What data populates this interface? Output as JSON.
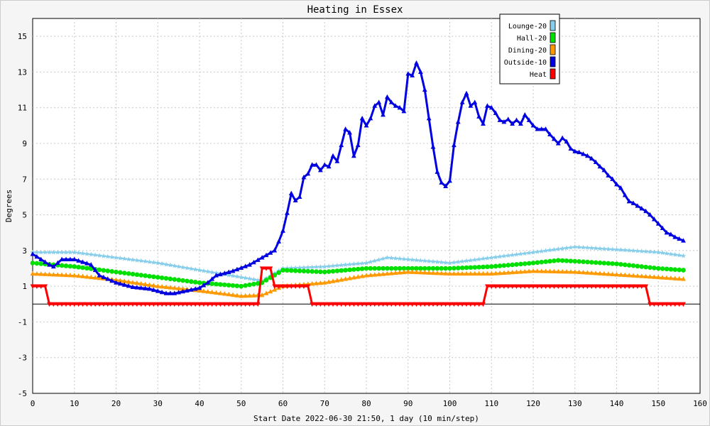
{
  "chart_data": {
    "type": "line",
    "title": "Heating in Essex",
    "xlabel": "Start Date 2022-06-30 21:50, 1 day (10 min/step)",
    "ylabel": "Degrees",
    "xlim": [
      0,
      160
    ],
    "ylim": [
      -5,
      16
    ],
    "xticks": [
      0,
      10,
      20,
      30,
      40,
      50,
      60,
      70,
      80,
      90,
      100,
      110,
      120,
      130,
      140,
      150,
      160
    ],
    "yticks": [
      -5,
      -3,
      -1,
      1,
      3,
      5,
      7,
      9,
      11,
      13,
      15
    ],
    "grid": true,
    "legend_position": "top-right",
    "series": [
      {
        "name": "Lounge-20",
        "color": "#87ceeb",
        "marker": "star",
        "points": [
          [
            0,
            2.9
          ],
          [
            10,
            2.9
          ],
          [
            20,
            2.6
          ],
          [
            30,
            2.3
          ],
          [
            40,
            1.9
          ],
          [
            50,
            1.5
          ],
          [
            55,
            1.3
          ],
          [
            60,
            2.0
          ],
          [
            65,
            2.05
          ],
          [
            70,
            2.1
          ],
          [
            80,
            2.3
          ],
          [
            85,
            2.6
          ],
          [
            90,
            2.5
          ],
          [
            95,
            2.4
          ],
          [
            100,
            2.3
          ],
          [
            110,
            2.6
          ],
          [
            120,
            2.9
          ],
          [
            130,
            3.2
          ],
          [
            140,
            3.05
          ],
          [
            150,
            2.9
          ],
          [
            156,
            2.7
          ]
        ]
      },
      {
        "name": "Hall-20",
        "color": "#00e000",
        "marker": "circle",
        "points": [
          [
            0,
            2.3
          ],
          [
            10,
            2.1
          ],
          [
            20,
            1.8
          ],
          [
            30,
            1.5
          ],
          [
            40,
            1.2
          ],
          [
            50,
            1.0
          ],
          [
            55,
            1.2
          ],
          [
            60,
            1.9
          ],
          [
            70,
            1.8
          ],
          [
            80,
            2.0
          ],
          [
            90,
            2.0
          ],
          [
            100,
            2.0
          ],
          [
            110,
            2.1
          ],
          [
            120,
            2.3
          ],
          [
            126,
            2.45
          ],
          [
            130,
            2.4
          ],
          [
            140,
            2.25
          ],
          [
            150,
            2.0
          ],
          [
            156,
            1.9
          ]
        ]
      },
      {
        "name": "Dining-20",
        "color": "#ff9900",
        "marker": "triangle-up",
        "points": [
          [
            0,
            1.7
          ],
          [
            10,
            1.6
          ],
          [
            20,
            1.35
          ],
          [
            30,
            1.0
          ],
          [
            40,
            0.75
          ],
          [
            50,
            0.45
          ],
          [
            55,
            0.5
          ],
          [
            58,
            0.8
          ],
          [
            60,
            1.0
          ],
          [
            70,
            1.2
          ],
          [
            80,
            1.6
          ],
          [
            90,
            1.8
          ],
          [
            100,
            1.7
          ],
          [
            110,
            1.7
          ],
          [
            120,
            1.85
          ],
          [
            130,
            1.8
          ],
          [
            140,
            1.65
          ],
          [
            150,
            1.5
          ],
          [
            156,
            1.4
          ]
        ]
      },
      {
        "name": "Outside-10",
        "color": "#0000e0",
        "marker": "triangle-up",
        "points": [
          [
            0,
            2.8
          ],
          [
            2,
            2.5
          ],
          [
            4,
            2.2
          ],
          [
            5,
            2.1
          ],
          [
            7,
            2.5
          ],
          [
            10,
            2.5
          ],
          [
            14,
            2.2
          ],
          [
            16,
            1.6
          ],
          [
            20,
            1.2
          ],
          [
            24,
            0.95
          ],
          [
            28,
            0.85
          ],
          [
            32,
            0.6
          ],
          [
            34,
            0.6
          ],
          [
            36,
            0.7
          ],
          [
            40,
            0.9
          ],
          [
            42,
            1.2
          ],
          [
            44,
            1.6
          ],
          [
            48,
            1.85
          ],
          [
            52,
            2.2
          ],
          [
            55,
            2.6
          ],
          [
            58,
            3.0
          ],
          [
            59,
            3.5
          ],
          [
            60,
            4.1
          ],
          [
            61,
            5.1
          ],
          [
            62,
            6.2
          ],
          [
            63,
            5.8
          ],
          [
            64,
            6.0
          ],
          [
            65,
            7.1
          ],
          [
            66,
            7.3
          ],
          [
            67,
            7.8
          ],
          [
            68,
            7.8
          ],
          [
            69,
            7.5
          ],
          [
            70,
            7.8
          ],
          [
            71,
            7.7
          ],
          [
            72,
            8.3
          ],
          [
            73,
            8.0
          ],
          [
            74,
            8.9
          ],
          [
            75,
            9.8
          ],
          [
            76,
            9.6
          ],
          [
            77,
            8.3
          ],
          [
            78,
            8.9
          ],
          [
            79,
            10.4
          ],
          [
            80,
            10.0
          ],
          [
            81,
            10.4
          ],
          [
            82,
            11.1
          ],
          [
            83,
            11.3
          ],
          [
            84,
            10.6
          ],
          [
            85,
            11.6
          ],
          [
            86,
            11.3
          ],
          [
            87,
            11.1
          ],
          [
            88,
            11.0
          ],
          [
            89,
            10.8
          ],
          [
            90,
            12.9
          ],
          [
            91,
            12.8
          ],
          [
            92,
            13.5
          ],
          [
            93,
            13.0
          ],
          [
            94,
            12.0
          ],
          [
            95,
            10.4
          ],
          [
            96,
            8.8
          ],
          [
            97,
            7.4
          ],
          [
            98,
            6.8
          ],
          [
            99,
            6.6
          ],
          [
            100,
            6.9
          ],
          [
            101,
            8.9
          ],
          [
            102,
            10.2
          ],
          [
            103,
            11.3
          ],
          [
            104,
            11.8
          ],
          [
            105,
            11.1
          ],
          [
            106,
            11.3
          ],
          [
            107,
            10.5
          ],
          [
            108,
            10.1
          ],
          [
            109,
            11.1
          ],
          [
            110,
            11.0
          ],
          [
            111,
            10.7
          ],
          [
            112,
            10.3
          ],
          [
            113,
            10.2
          ],
          [
            114,
            10.35
          ],
          [
            115,
            10.1
          ],
          [
            116,
            10.3
          ],
          [
            117,
            10.1
          ],
          [
            118,
            10.6
          ],
          [
            119,
            10.3
          ],
          [
            120,
            10.0
          ],
          [
            121,
            9.8
          ],
          [
            122,
            9.8
          ],
          [
            123,
            9.8
          ],
          [
            124,
            9.5
          ],
          [
            125,
            9.25
          ],
          [
            126,
            9.0
          ],
          [
            127,
            9.3
          ],
          [
            128,
            9.1
          ],
          [
            129,
            8.7
          ],
          [
            130,
            8.55
          ],
          [
            131,
            8.5
          ],
          [
            132,
            8.4
          ],
          [
            133,
            8.3
          ],
          [
            134,
            8.15
          ],
          [
            135,
            7.95
          ],
          [
            136,
            7.7
          ],
          [
            137,
            7.5
          ],
          [
            138,
            7.2
          ],
          [
            139,
            7.0
          ],
          [
            140,
            6.7
          ],
          [
            141,
            6.5
          ],
          [
            142,
            6.1
          ],
          [
            143,
            5.75
          ],
          [
            144,
            5.65
          ],
          [
            145,
            5.5
          ],
          [
            146,
            5.35
          ],
          [
            147,
            5.2
          ],
          [
            148,
            5.0
          ],
          [
            149,
            4.75
          ],
          [
            150,
            4.5
          ],
          [
            151,
            4.25
          ],
          [
            152,
            4.0
          ],
          [
            153,
            3.9
          ],
          [
            154,
            3.75
          ],
          [
            155,
            3.65
          ],
          [
            156,
            3.55
          ]
        ]
      },
      {
        "name": "Heat",
        "color": "#ff0000",
        "marker": "triangle-down",
        "points": [
          [
            0,
            1
          ],
          [
            3,
            1
          ],
          [
            4,
            0
          ],
          [
            54,
            0
          ],
          [
            55,
            2
          ],
          [
            57,
            2
          ],
          [
            58,
            1
          ],
          [
            66,
            1
          ],
          [
            67,
            0
          ],
          [
            108,
            0
          ],
          [
            109,
            1
          ],
          [
            147,
            1
          ],
          [
            148,
            0
          ],
          [
            156,
            0
          ]
        ]
      }
    ]
  }
}
